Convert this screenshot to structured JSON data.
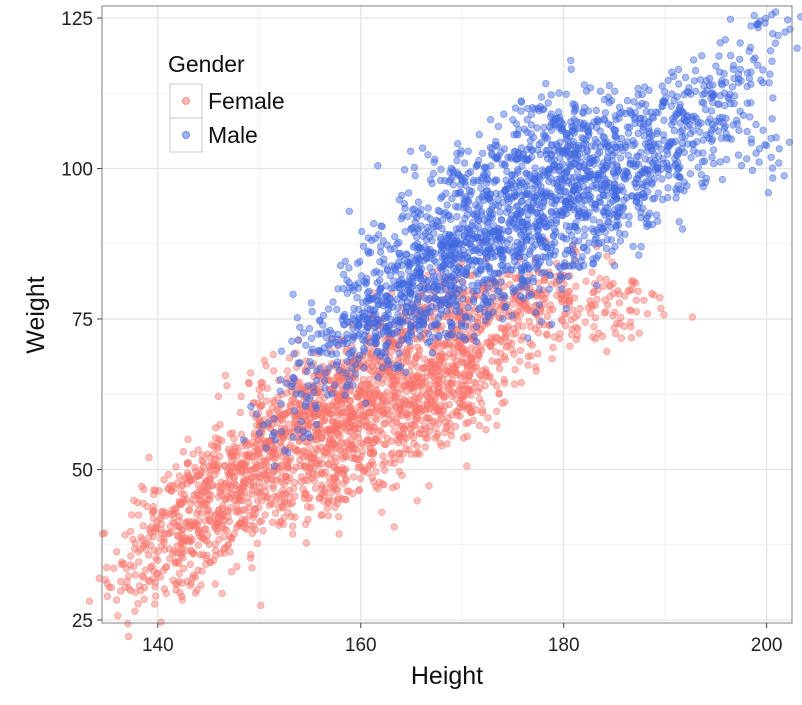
{
  "chart_data": {
    "type": "scatter",
    "title": "",
    "xlabel": "Height",
    "ylabel": "Weight",
    "xlim": [
      134.5,
      202.5
    ],
    "ylim": [
      24.5,
      127
    ],
    "x_ticks": [
      140,
      160,
      180,
      200
    ],
    "y_ticks": [
      25,
      50,
      75,
      100,
      125
    ],
    "x_tick_labels": [
      "140",
      "160",
      "180",
      "200"
    ],
    "y_tick_labels": [
      "25",
      "50",
      "75",
      "100",
      "125"
    ],
    "grid": true,
    "legend": {
      "title": "Gender",
      "position": "top-left"
    },
    "series": [
      {
        "name": "Female",
        "color": "#f8766d",
        "opacity": 0.45,
        "points": [
          [
            137.8,
            29.6
          ],
          [
            138.6,
            32.1
          ],
          [
            139.1,
            35.8
          ],
          [
            139.8,
            40.2
          ],
          [
            140.6,
            38.4
          ],
          [
            141.5,
            31.6
          ],
          [
            141.8,
            43.6
          ],
          [
            142.4,
            36.2
          ],
          [
            142.6,
            45.9
          ],
          [
            143.1,
            48.7
          ],
          [
            143.5,
            40.8
          ],
          [
            144.0,
            44.2
          ],
          [
            144.3,
            39.3
          ],
          [
            144.9,
            47.2
          ],
          [
            145.2,
            34.6
          ],
          [
            145.6,
            50.6
          ],
          [
            146.1,
            42.8
          ],
          [
            146.6,
            46.3
          ],
          [
            147.0,
            49.1
          ],
          [
            147.3,
            38.5
          ],
          [
            147.8,
            52.2
          ],
          [
            148.2,
            44.9
          ],
          [
            148.6,
            48.3
          ],
          [
            149.0,
            54.2
          ],
          [
            149.4,
            42.5
          ],
          [
            149.8,
            50.7
          ],
          [
            150.3,
            56.8
          ],
          [
            150.6,
            46.4
          ],
          [
            151.0,
            52.1
          ],
          [
            151.4,
            58.4
          ],
          [
            151.7,
            48.2
          ],
          [
            152.1,
            54.6
          ],
          [
            152.5,
            44.7
          ],
          [
            152.9,
            56.3
          ],
          [
            153.2,
            61.5
          ],
          [
            153.6,
            50.4
          ],
          [
            154.0,
            57.5
          ],
          [
            154.3,
            46.8
          ],
          [
            154.7,
            59.8
          ],
          [
            155.1,
            64.0
          ],
          [
            155.4,
            52.6
          ],
          [
            155.8,
            60.8
          ],
          [
            156.2,
            55.3
          ],
          [
            156.5,
            49.6
          ],
          [
            156.9,
            63.3
          ],
          [
            157.3,
            58.0
          ],
          [
            157.6,
            67.1
          ],
          [
            158.0,
            53.2
          ],
          [
            158.4,
            61.7
          ],
          [
            158.7,
            56.4
          ],
          [
            159.1,
            65.2
          ],
          [
            159.5,
            51.8
          ],
          [
            159.8,
            60.4
          ],
          [
            160.2,
            69.0
          ],
          [
            160.6,
            57.2
          ],
          [
            160.9,
            63.6
          ],
          [
            161.3,
            54.5
          ],
          [
            161.7,
            67.3
          ],
          [
            162.0,
            60.6
          ],
          [
            162.4,
            71.5
          ],
          [
            162.8,
            58.3
          ],
          [
            163.1,
            65.6
          ],
          [
            163.5,
            62.0
          ],
          [
            163.9,
            74.6
          ],
          [
            164.2,
            56.8
          ],
          [
            164.6,
            68.5
          ],
          [
            165.0,
            63.5
          ],
          [
            165.3,
            71.8
          ],
          [
            165.7,
            60.2
          ],
          [
            166.1,
            66.8
          ],
          [
            166.4,
            76.6
          ],
          [
            166.8,
            64.0
          ],
          [
            167.2,
            70.6
          ],
          [
            167.6,
            59.8
          ],
          [
            168.0,
            73.8
          ],
          [
            168.4,
            66.4
          ],
          [
            168.8,
            77.8
          ],
          [
            169.2,
            62.6
          ],
          [
            169.6,
            70.2
          ],
          [
            170.0,
            74.5
          ],
          [
            170.5,
            67.2
          ],
          [
            171.0,
            79.4
          ],
          [
            171.5,
            71.0
          ],
          [
            172.0,
            64.9
          ],
          [
            172.6,
            76.2
          ],
          [
            173.2,
            81.0
          ],
          [
            173.8,
            69.3
          ],
          [
            174.4,
            77.4
          ],
          [
            175.0,
            72.5
          ],
          [
            175.8,
            80.3
          ],
          [
            176.6,
            74.6
          ],
          [
            177.5,
            78.9
          ],
          [
            178.6,
            76.5
          ],
          [
            179.8,
            81.6
          ],
          [
            181.2,
            73.6
          ],
          [
            182.6,
            78.0
          ],
          [
            184.6,
            80.6
          ],
          [
            186.5,
            76.5
          ],
          [
            155.9,
            45.2
          ],
          [
            158.3,
            47.6
          ],
          [
            154.5,
            58.7
          ],
          [
            157.8,
            62.3
          ],
          [
            160.8,
            59.5
          ],
          [
            163.7,
            59.4
          ],
          [
            167.6,
            62.8
          ],
          [
            161.5,
            49.6
          ],
          [
            165.2,
            55.3
          ],
          [
            168.6,
            58.6
          ],
          [
            170.8,
            63.2
          ],
          [
            150.8,
            63.5
          ]
        ]
      },
      {
        "name": "Male",
        "color": "#4169e1",
        "opacity": 0.45,
        "points": [
          [
            152.2,
            56.3
          ],
          [
            154.8,
            63.9
          ],
          [
            156.4,
            70.2
          ],
          [
            157.6,
            67.4
          ],
          [
            158.3,
            74.1
          ],
          [
            159.1,
            69.5
          ],
          [
            159.8,
            76.6
          ],
          [
            160.4,
            72.3
          ],
          [
            160.8,
            79.6
          ],
          [
            161.4,
            71.0
          ],
          [
            161.9,
            82.6
          ],
          [
            162.4,
            75.6
          ],
          [
            162.9,
            78.4
          ],
          [
            163.3,
            86.7
          ],
          [
            163.8,
            73.6
          ],
          [
            164.2,
            80.9
          ],
          [
            164.7,
            84.1
          ],
          [
            165.1,
            77.5
          ],
          [
            165.5,
            88.6
          ],
          [
            165.9,
            82.2
          ],
          [
            166.4,
            75.1
          ],
          [
            166.8,
            86.0
          ],
          [
            167.2,
            80.4
          ],
          [
            167.6,
            91.2
          ],
          [
            168.0,
            83.7
          ],
          [
            168.4,
            78.3
          ],
          [
            168.8,
            88.9
          ],
          [
            169.2,
            84.3
          ],
          [
            169.6,
            93.6
          ],
          [
            170.0,
            81.2
          ],
          [
            170.4,
            87.7
          ],
          [
            170.8,
            95.6
          ],
          [
            171.2,
            84.8
          ],
          [
            171.6,
            90.3
          ],
          [
            172.0,
            86.4
          ],
          [
            172.4,
            97.6
          ],
          [
            172.8,
            89.2
          ],
          [
            173.2,
            82.6
          ],
          [
            173.6,
            93.8
          ],
          [
            174.0,
            88.1
          ],
          [
            174.4,
            99.5
          ],
          [
            174.8,
            91.6
          ],
          [
            175.2,
            85.6
          ],
          [
            175.6,
            96.1
          ],
          [
            176.0,
            90.4
          ],
          [
            176.4,
            101.3
          ],
          [
            176.8,
            93.4
          ],
          [
            177.2,
            87.3
          ],
          [
            177.6,
            98.6
          ],
          [
            178.0,
            92.0
          ],
          [
            178.4,
            103.0
          ],
          [
            178.8,
            95.4
          ],
          [
            179.2,
            89.5
          ],
          [
            179.6,
            100.4
          ],
          [
            180.0,
            93.2
          ],
          [
            180.4,
            104.6
          ],
          [
            180.8,
            97.3
          ],
          [
            181.2,
            91.0
          ],
          [
            181.6,
            102.4
          ],
          [
            182.0,
            95.6
          ],
          [
            182.4,
            106.1
          ],
          [
            182.8,
            99.0
          ],
          [
            183.2,
            93.3
          ],
          [
            183.6,
            103.6
          ],
          [
            184.0,
            97.5
          ],
          [
            184.4,
            107.4
          ],
          [
            184.8,
            100.6
          ],
          [
            185.2,
            94.9
          ],
          [
            185.7,
            105.0
          ],
          [
            186.2,
            99.4
          ],
          [
            186.7,
            109.0
          ],
          [
            187.2,
            102.0
          ],
          [
            187.8,
            96.9
          ],
          [
            188.4,
            106.6
          ],
          [
            189.0,
            101.3
          ],
          [
            189.7,
            110.4
          ],
          [
            190.4,
            103.7
          ],
          [
            191.1,
            98.9
          ],
          [
            191.9,
            108.2
          ],
          [
            192.8,
            103.0
          ],
          [
            193.7,
            112.3
          ],
          [
            194.6,
            106.4
          ],
          [
            195.6,
            114.6
          ],
          [
            196.8,
            110.8
          ],
          [
            198.1,
            115.9
          ],
          [
            199.3,
            103.3
          ],
          [
            200.6,
            122.4
          ],
          [
            167.4,
            74.2
          ],
          [
            170.6,
            76.9
          ],
          [
            173.5,
            79.6
          ],
          [
            176.3,
            81.3
          ],
          [
            179.5,
            83.7
          ],
          [
            182.3,
            86.4
          ],
          [
            185.4,
            90.6
          ],
          [
            188.3,
            92.1
          ],
          [
            175.1,
            105.6
          ],
          [
            178.7,
            108.6
          ],
          [
            181.1,
            110.6
          ],
          [
            168.3,
            98.0
          ],
          [
            171.5,
            100.6
          ]
        ]
      }
    ]
  }
}
